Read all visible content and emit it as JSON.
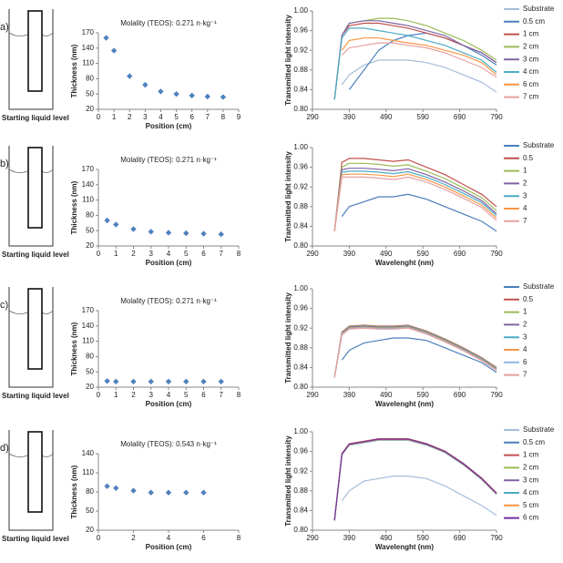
{
  "panels": [
    {
      "letter": "a)",
      "caption": "Starting liquid level"
    },
    {
      "letter": "b)",
      "caption": "Starting liquid level"
    },
    {
      "letter": "c)",
      "caption": "Starting liquid level"
    },
    {
      "letter": "d)",
      "caption": "Starting liquid level"
    }
  ],
  "chart_data": [
    {
      "type": "scatter",
      "title": "Molality (TEOS): 0.271 n·kg⁻¹",
      "x_label": "Position (cm)",
      "y_label": "Thickness (nm)",
      "color": "#4f81bd",
      "x": [
        0.5,
        1,
        2,
        3,
        4,
        5,
        6,
        7,
        8
      ],
      "values": [
        160,
        135,
        85,
        68,
        55,
        50,
        47,
        45,
        44
      ],
      "xlim": [
        0,
        9
      ],
      "xticks": [
        0,
        1,
        2,
        3,
        4,
        5,
        6,
        7,
        8,
        9
      ],
      "ylim": [
        20,
        170
      ],
      "yticks": [
        20,
        50,
        80,
        110,
        140,
        170
      ]
    },
    {
      "type": "line",
      "y_label": "Transmitted light intensity",
      "x": [
        350,
        370,
        390,
        430,
        470,
        510,
        550,
        600,
        650,
        700,
        750,
        790
      ],
      "xlim": [
        290,
        790
      ],
      "xticks": [
        290,
        390,
        490,
        590,
        690,
        790
      ],
      "ylim": [
        0.8,
        1.0
      ],
      "yticks": [
        {
          "value": 0.8,
          "label": "0.80"
        },
        0.84,
        0.88,
        0.92,
        0.96,
        {
          "value": 1.0,
          "label": "1.00"
        }
      ],
      "series": [
        {
          "name": "Substrate",
          "color": "#a6bddb",
          "values": [
            null,
            0.85,
            0.87,
            0.89,
            0.9,
            0.9,
            0.9,
            0.895,
            0.885,
            0.87,
            0.855,
            0.835
          ]
        },
        {
          "name": "0.5 cm",
          "color": "#4a7ebb",
          "values": [
            null,
            null,
            0.84,
            0.88,
            0.92,
            0.94,
            0.95,
            0.955,
            0.945,
            0.93,
            0.91,
            0.89
          ]
        },
        {
          "name": "1 cm",
          "color": "#c0504d",
          "values": [
            0.82,
            0.95,
            0.97,
            0.975,
            0.975,
            0.97,
            0.965,
            0.955,
            0.945,
            0.93,
            0.915,
            0.895
          ]
        },
        {
          "name": "2 cm",
          "color": "#9bbb59",
          "values": [
            0.82,
            0.95,
            0.975,
            0.98,
            0.985,
            0.985,
            0.98,
            0.97,
            0.955,
            0.94,
            0.92,
            0.9
          ]
        },
        {
          "name": "3 cm",
          "color": "#8064a2",
          "values": [
            0.82,
            0.95,
            0.975,
            0.98,
            0.98,
            0.975,
            0.97,
            0.96,
            0.95,
            0.93,
            0.915,
            0.895
          ]
        },
        {
          "name": "4 cm",
          "color": "#4bacc6",
          "values": [
            0.82,
            0.945,
            0.965,
            0.965,
            0.96,
            0.955,
            0.95,
            0.94,
            0.93,
            0.915,
            0.9,
            0.875
          ]
        },
        {
          "name": "6 cm",
          "color": "#f79646",
          "values": [
            null,
            0.92,
            0.94,
            0.945,
            0.945,
            0.94,
            0.935,
            0.93,
            0.92,
            0.91,
            0.895,
            0.87
          ]
        },
        {
          "name": "7 cm",
          "color": "#e8a0a0",
          "values": [
            null,
            0.91,
            0.925,
            0.93,
            0.935,
            0.935,
            0.93,
            0.925,
            0.915,
            0.9,
            0.885,
            0.865
          ]
        }
      ]
    },
    {
      "type": "scatter",
      "title": "Molality (TEOS): 0.271 n·kg⁻¹",
      "x_label": "Position (cm)",
      "y_label": "Thickness (nm)",
      "color": "#4f81bd",
      "x": [
        0.5,
        1,
        2,
        3,
        4,
        5,
        6,
        7
      ],
      "values": [
        70,
        62,
        53,
        48,
        46,
        45,
        44,
        43
      ],
      "xlim": [
        0,
        8
      ],
      "xticks": [
        0,
        1,
        2,
        3,
        4,
        5,
        6,
        7,
        8
      ],
      "ylim": [
        20,
        170
      ],
      "yticks": [
        20,
        50,
        80,
        110,
        140,
        170
      ]
    },
    {
      "type": "line",
      "y_label": "Transmitted light intensity",
      "x_label": "Wavelenght (nm)",
      "x": [
        350,
        370,
        390,
        430,
        470,
        510,
        550,
        600,
        650,
        700,
        750,
        790
      ],
      "xlim": [
        290,
        790
      ],
      "xticks": [
        290,
        390,
        490,
        590,
        690,
        790
      ],
      "ylim": [
        0.8,
        1.0
      ],
      "yticks": [
        {
          "value": 0.8,
          "label": "0.80"
        },
        0.84,
        0.88,
        0.92,
        0.96,
        {
          "value": 1.0,
          "label": "1.00"
        }
      ],
      "series": [
        {
          "name": "Substrate",
          "color": "#4a7ebb",
          "values": [
            null,
            0.86,
            0.88,
            0.89,
            0.9,
            0.9,
            0.905,
            0.895,
            0.88,
            0.865,
            0.85,
            0.83
          ]
        },
        {
          "name": "0.5",
          "color": "#c0504d",
          "values": [
            0.83,
            0.97,
            0.978,
            0.978,
            0.975,
            0.972,
            0.975,
            0.96,
            0.945,
            0.925,
            0.905,
            0.88
          ]
        },
        {
          "name": "1",
          "color": "#9bbb59",
          "values": [
            0.83,
            0.96,
            0.968,
            0.968,
            0.966,
            0.962,
            0.965,
            0.952,
            0.937,
            0.918,
            0.898,
            0.872
          ]
        },
        {
          "name": "2",
          "color": "#8064a2",
          "values": [
            0.83,
            0.955,
            0.958,
            0.958,
            0.956,
            0.953,
            0.957,
            0.945,
            0.93,
            0.912,
            0.892,
            0.866
          ]
        },
        {
          "name": "3",
          "color": "#4bacc6",
          "values": [
            0.83,
            0.95,
            0.952,
            0.952,
            0.95,
            0.947,
            0.951,
            0.94,
            0.925,
            0.907,
            0.888,
            0.862
          ]
        },
        {
          "name": "4",
          "color": "#f79646",
          "values": [
            0.83,
            0.945,
            0.946,
            0.946,
            0.944,
            0.941,
            0.946,
            0.935,
            0.92,
            0.902,
            0.883,
            0.857
          ]
        },
        {
          "name": "7",
          "color": "#e8a0a0",
          "values": [
            0.83,
            0.94,
            0.94,
            0.94,
            0.938,
            0.935,
            0.94,
            0.93,
            0.915,
            0.897,
            0.878,
            0.852
          ]
        }
      ]
    },
    {
      "type": "scatter",
      "title": "Molality (TEOS): 0.271 n·kg⁻¹",
      "x_label": "Position (cm)",
      "y_label": "Thickness (nm)",
      "color": "#4f81bd",
      "x": [
        0.5,
        1,
        2,
        3,
        4,
        5,
        6,
        7
      ],
      "values": [
        32,
        31,
        31,
        31,
        31,
        31,
        31,
        31
      ],
      "xlim": [
        0,
        8
      ],
      "xticks": [
        0,
        1,
        2,
        3,
        4,
        5,
        6,
        7,
        8
      ],
      "ylim": [
        20,
        170
      ],
      "yticks": [
        20,
        50,
        80,
        110,
        140,
        170
      ]
    },
    {
      "type": "line",
      "y_label": "Transmitted light intensity",
      "x_label": "Wavelenght (nm)",
      "x": [
        350,
        370,
        390,
        430,
        470,
        510,
        550,
        600,
        650,
        700,
        750,
        790
      ],
      "xlim": [
        290,
        790
      ],
      "xticks": [
        290,
        390,
        490,
        590,
        690,
        790
      ],
      "ylim": [
        0.8,
        1.0
      ],
      "yticks": [
        {
          "value": 0.8,
          "label": "0.80"
        },
        0.84,
        0.88,
        0.92,
        0.96,
        {
          "value": 1.0,
          "label": "1.00"
        }
      ],
      "series": [
        {
          "name": "Substrate",
          "color": "#4a7ebb",
          "values": [
            null,
            0.855,
            0.875,
            0.89,
            0.895,
            0.9,
            0.9,
            0.895,
            0.88,
            0.865,
            0.85,
            0.83
          ]
        },
        {
          "name": "0.5",
          "color": "#c0504d",
          "values": [
            0.82,
            0.912,
            0.924,
            0.926,
            0.924,
            0.924,
            0.926,
            0.914,
            0.898,
            0.88,
            0.86,
            0.84
          ]
        },
        {
          "name": "1",
          "color": "#9bbb59",
          "values": [
            0.82,
            0.911,
            0.923,
            0.925,
            0.923,
            0.923,
            0.925,
            0.913,
            0.897,
            0.879,
            0.859,
            0.839
          ]
        },
        {
          "name": "2",
          "color": "#8064a2",
          "values": [
            0.82,
            0.91,
            0.922,
            0.924,
            0.922,
            0.922,
            0.924,
            0.912,
            0.896,
            0.878,
            0.858,
            0.838
          ]
        },
        {
          "name": "3",
          "color": "#4bacc6",
          "values": [
            0.82,
            0.909,
            0.921,
            0.923,
            0.921,
            0.921,
            0.923,
            0.911,
            0.895,
            0.877,
            0.857,
            0.837
          ]
        },
        {
          "name": "4",
          "color": "#f79646",
          "values": [
            0.82,
            0.908,
            0.92,
            0.922,
            0.92,
            0.92,
            0.922,
            0.91,
            0.894,
            0.876,
            0.856,
            0.836
          ]
        },
        {
          "name": "6",
          "color": "#8eb4e3",
          "values": [
            0.82,
            0.907,
            0.919,
            0.921,
            0.919,
            0.919,
            0.921,
            0.909,
            0.893,
            0.875,
            0.855,
            0.835
          ]
        },
        {
          "name": "7",
          "color": "#e8a0a0",
          "values": [
            0.82,
            0.906,
            0.918,
            0.92,
            0.918,
            0.918,
            0.92,
            0.908,
            0.892,
            0.874,
            0.854,
            0.834
          ]
        }
      ]
    },
    {
      "type": "scatter",
      "title": "Molality (TEOS): 0.543 n·kg⁻¹",
      "x_label": "Position (cm)",
      "y_label": "Thickness (nm)",
      "color": "#4f81bd",
      "x": [
        0.5,
        1,
        2,
        3,
        4,
        5,
        6
      ],
      "values": [
        89,
        86,
        82,
        79,
        79,
        79,
        79
      ],
      "xlim": [
        0,
        8
      ],
      "xticks": [
        0,
        2,
        4,
        6,
        8
      ],
      "ylim": [
        20,
        140
      ],
      "yticks": [
        20,
        50,
        80,
        110,
        140
      ]
    },
    {
      "type": "line",
      "y_label": "Transmitted light intensity",
      "x_label": "Wavelenght (nm)",
      "x": [
        350,
        370,
        390,
        430,
        470,
        510,
        550,
        600,
        650,
        700,
        750,
        790
      ],
      "xlim": [
        290,
        790
      ],
      "xticks": [
        290,
        390,
        490,
        590,
        690,
        790
      ],
      "ylim": [
        0.8,
        1.0
      ],
      "yticks": [
        {
          "value": 0.8,
          "label": "0.80"
        },
        0.84,
        0.88,
        0.92,
        0.96,
        {
          "value": 1.0,
          "label": "1.00"
        }
      ],
      "series": [
        {
          "name": "Substrate",
          "color": "#a6bddb",
          "values": [
            null,
            0.86,
            0.88,
            0.9,
            0.905,
            0.91,
            0.91,
            0.905,
            0.89,
            0.87,
            0.85,
            0.83
          ]
        },
        {
          "name": "0.5 cm",
          "color": "#4a7ebb",
          "values": [
            0.82,
            0.955,
            0.975,
            0.98,
            0.985,
            0.985,
            0.985,
            0.975,
            0.96,
            0.935,
            0.905,
            0.875
          ]
        },
        {
          "name": "1 cm",
          "color": "#c0504d",
          "values": [
            0.82,
            0.956,
            0.976,
            0.981,
            0.986,
            0.986,
            0.986,
            0.976,
            0.961,
            0.936,
            0.906,
            0.876
          ]
        },
        {
          "name": "2 cm",
          "color": "#9bbb59",
          "values": [
            0.82,
            0.954,
            0.974,
            0.979,
            0.984,
            0.984,
            0.984,
            0.974,
            0.959,
            0.934,
            0.904,
            0.874
          ]
        },
        {
          "name": "3 cm",
          "color": "#8064a2",
          "values": [
            0.82,
            0.955,
            0.975,
            0.98,
            0.985,
            0.985,
            0.985,
            0.975,
            0.96,
            0.935,
            0.905,
            0.875
          ]
        },
        {
          "name": "4 cm",
          "color": "#4bacc6",
          "values": [
            0.82,
            0.953,
            0.973,
            0.978,
            0.983,
            0.983,
            0.983,
            0.973,
            0.958,
            0.933,
            0.903,
            0.873
          ]
        },
        {
          "name": "5 cm",
          "color": "#f79646",
          "values": [
            0.82,
            0.954,
            0.974,
            0.979,
            0.984,
            0.984,
            0.984,
            0.974,
            0.959,
            0.934,
            0.904,
            0.874
          ]
        },
        {
          "name": "6 cm",
          "color": "#7030a0",
          "values": [
            0.82,
            0.955,
            0.975,
            0.98,
            0.985,
            0.985,
            0.985,
            0.975,
            0.96,
            0.935,
            0.905,
            0.875
          ]
        }
      ]
    }
  ]
}
